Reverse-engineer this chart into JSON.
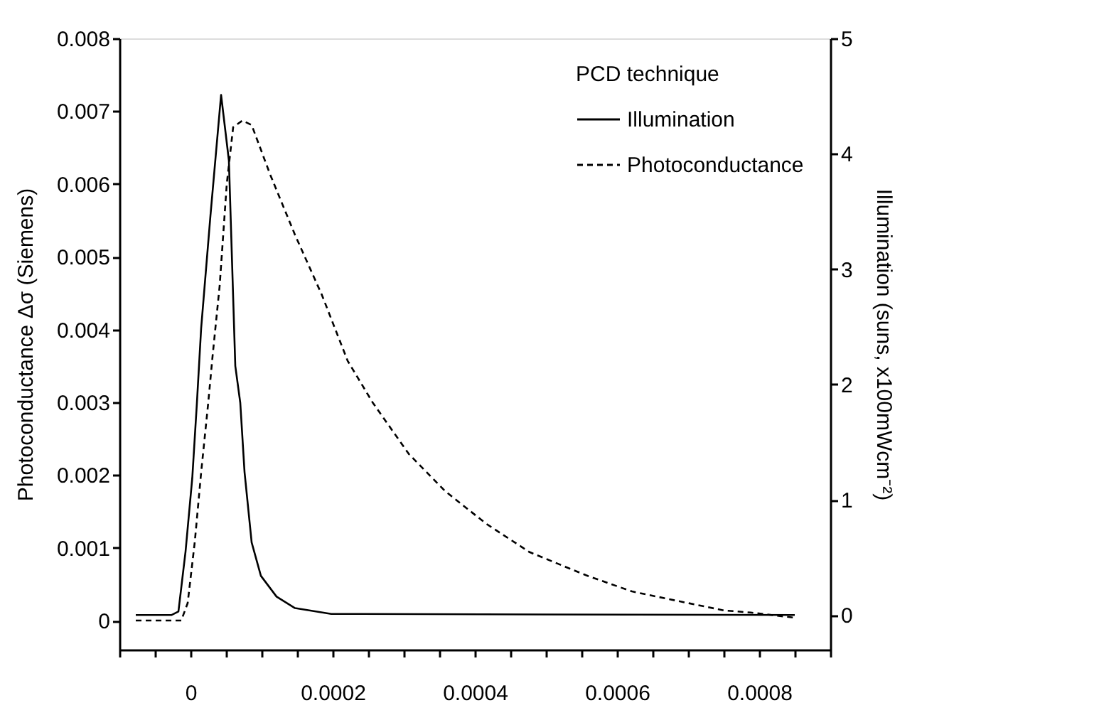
{
  "chart_data": {
    "type": "line",
    "xlim": [
      -0.0001,
      0.0009
    ],
    "xticks": [
      {
        "value": -0.0001,
        "label": null
      },
      {
        "value": -5e-05,
        "label": null
      },
      0,
      {
        "value": 5e-05,
        "label": null
      },
      {
        "value": 0.0001,
        "label": null
      },
      {
        "value": 0.00015,
        "label": null
      },
      0.0002,
      {
        "value": 0.00025,
        "label": null
      },
      {
        "value": 0.0003,
        "label": null
      },
      {
        "value": 0.00035,
        "label": null
      },
      0.0004,
      {
        "value": 0.00045,
        "label": null
      },
      {
        "value": 0.0005,
        "label": null
      },
      {
        "value": 0.00055,
        "label": null
      },
      0.0006,
      {
        "value": 0.00065,
        "label": null
      },
      {
        "value": 0.0007,
        "label": null
      },
      {
        "value": 0.00075,
        "label": null
      },
      0.0008,
      {
        "value": 0.00085,
        "label": null
      },
      {
        "value": 0.0009,
        "label": null
      }
    ],
    "ylim": [
      -0.0004,
      0.008
    ],
    "yticks": [
      0,
      0.001,
      0.002,
      0.003,
      0.004,
      0.005,
      0.006,
      0.007,
      0.008
    ],
    "y2lim": [
      -0.3,
      5
    ],
    "y2ticks": [
      0,
      1,
      2,
      3,
      4,
      5
    ],
    "ylabel": "Photoconductance Δσ (Siemens)",
    "y2label": "Illumination (suns, x100mWcm⁻²)",
    "legend_title": "PCD technique",
    "legend": "top right",
    "grid": false,
    "marker": "none",
    "series": [
      {
        "name": "Illumination",
        "color": "#000000",
        "line_style": "solid",
        "axis": "y2",
        "x": [
          -7.7e-05,
          -2.7e-05,
          -1.7e-05,
          -7e-06,
          2.5e-06,
          9e-06,
          1.5e-05,
          2.8e-05,
          4.3e-05,
          5.4e-05,
          6.3e-05,
          7e-05,
          7.6e-05,
          8.6e-05,
          9.9e-05,
          0.000121,
          0.000147,
          0.000198,
          0.00085
        ],
        "values": [
          0,
          0,
          0.03,
          0.55,
          1.19,
          1.84,
          2.49,
          3.46,
          4.51,
          3.94,
          2.16,
          1.84,
          1.24,
          0.63,
          0.34,
          0.16,
          0.06,
          0.01,
          0
        ]
      },
      {
        "name": "Photoconductance",
        "color": "#000000",
        "line_style": "dashed",
        "x": [
          -7.7e-05,
          -1.3e-05,
          -4e-06,
          6e-06,
          1.5e-05,
          2.5e-05,
          3.1e-05,
          4.1e-05,
          5.1e-05,
          6e-05,
          7.3e-05,
          8.6e-05,
          0.000112,
          0.000147,
          0.000185,
          0.000221,
          0.000256,
          0.000307,
          0.000358,
          0.000416,
          0.000477,
          0.000557,
          0.000621,
          0.000685,
          0.00075,
          0.000788,
          0.000849
        ],
        "values": [
          0,
          0,
          0.00024,
          0.00108,
          0.00204,
          0.003,
          0.00363,
          0.0046,
          0.006,
          0.00678,
          0.00687,
          0.00681,
          0.00613,
          0.0053,
          0.00447,
          0.00357,
          0.003,
          0.00229,
          0.00178,
          0.00133,
          0.00094,
          0.00062,
          0.0004,
          0.00027,
          0.00014,
          0.00011,
          4e-05
        ]
      }
    ]
  }
}
